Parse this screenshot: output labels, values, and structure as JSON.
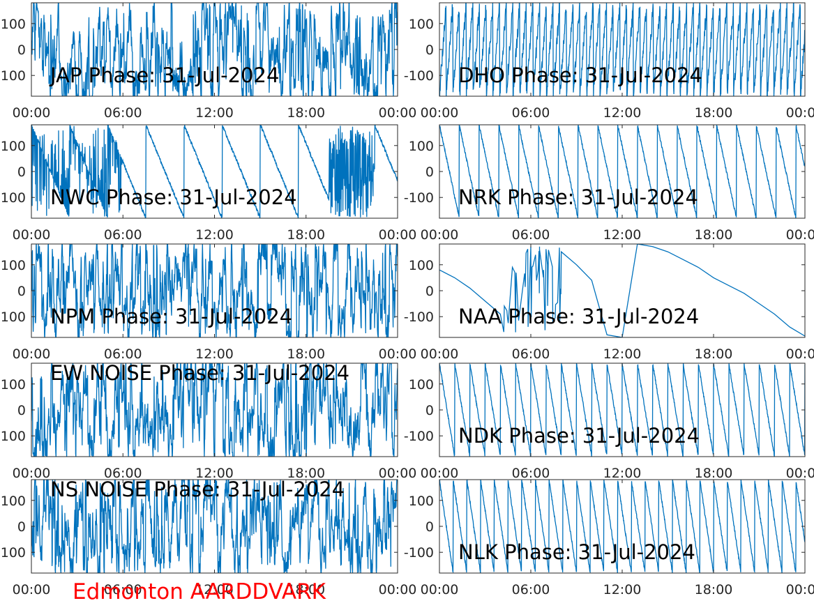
{
  "footer": {
    "text": "Edmonton AARDDVARK",
    "color": "#ff0000"
  },
  "line_color": "#0072bd",
  "chart_data": [
    {
      "type": "line",
      "title": "JAP Phase: 31-Jul-2024",
      "x_ticks": [
        "00:00",
        "06:00",
        "12:00",
        "18:00",
        "00:00"
      ],
      "y_ticks": [
        100,
        0,
        -100
      ],
      "ylim": [
        -180,
        180
      ],
      "xlim_hours": [
        0,
        24
      ],
      "series": [
        {
          "shape": "noise",
          "x": [
            0,
            24
          ],
          "y_range": [
            -180,
            180
          ]
        }
      ]
    },
    {
      "type": "line",
      "title": "DHO Phase: 31-Jul-2024",
      "x_ticks": [
        "00:00",
        "06:00",
        "12:00",
        "18:00",
        "00:00"
      ],
      "y_ticks": [
        100,
        0,
        -100
      ],
      "ylim": [
        -180,
        180
      ],
      "xlim_hours": [
        0,
        24
      ],
      "series": [
        {
          "shape": "fast-wrap",
          "x": [
            0,
            24
          ],
          "y_range": [
            -180,
            180
          ]
        }
      ]
    },
    {
      "type": "line",
      "title": "NWC Phase: 31-Jul-2024",
      "x_ticks": [
        "00:00",
        "06:00",
        "12:00",
        "18:00",
        "00:00"
      ],
      "y_ticks": [
        100,
        0,
        -100
      ],
      "ylim": [
        -180,
        180
      ],
      "xlim_hours": [
        0,
        24
      ],
      "series": [
        {
          "shape": "sawtooth",
          "period_hours": 2.5,
          "noise_until_hours": 6,
          "noise_band_hours": [
            19.5,
            22.5
          ]
        }
      ]
    },
    {
      "type": "line",
      "title": "NRK Phase: 31-Jul-2024",
      "x_ticks": [
        "00:00",
        "06:00",
        "12:00",
        "18:00",
        "00:00"
      ],
      "y_ticks": [
        100,
        0,
        -100
      ],
      "ylim": [
        -180,
        180
      ],
      "xlim_hours": [
        0,
        24
      ],
      "series": [
        {
          "shape": "sawtooth",
          "period_hours": 1.3
        }
      ]
    },
    {
      "type": "line",
      "title": "NPM Phase: 31-Jul-2024",
      "x_ticks": [
        "00:00",
        "06:00",
        "12:00",
        "18:00",
        "00:00"
      ],
      "y_ticks": [
        100,
        0,
        -100
      ],
      "ylim": [
        -180,
        180
      ],
      "xlim_hours": [
        0,
        24
      ],
      "series": [
        {
          "shape": "noise",
          "x": [
            0,
            24
          ],
          "y_range": [
            -180,
            180
          ]
        }
      ]
    },
    {
      "type": "line",
      "title": "NAA Phase: 31-Jul-2024",
      "x_ticks": [
        "00:00",
        "06:00",
        "12:00",
        "18:00",
        "00:00"
      ],
      "y_ticks": [
        100,
        0,
        -100
      ],
      "ylim": [
        -180,
        180
      ],
      "xlim_hours": [
        0,
        24
      ],
      "series": [
        {
          "shape": "slow-drift",
          "x": [
            0,
            1,
            2,
            3,
            4,
            5,
            6,
            7,
            8,
            9,
            10,
            11,
            12,
            13,
            14,
            15,
            16,
            17,
            18,
            19,
            20,
            21,
            22,
            23,
            24
          ],
          "y": [
            80,
            50,
            10,
            -40,
            -90,
            -160,
            170,
            160,
            150,
            100,
            40,
            -170,
            -180,
            180,
            170,
            150,
            120,
            90,
            50,
            20,
            -10,
            -50,
            -90,
            -140,
            -175
          ]
        }
      ]
    },
    {
      "type": "line",
      "title": "EW NOISE Phase: 31-Jul-2024",
      "x_ticks": [
        "00:00",
        "06:00",
        "12:00",
        "18:00",
        "00:00"
      ],
      "y_ticks": [
        100,
        0,
        -100
      ],
      "ylim": [
        -180,
        180
      ],
      "xlim_hours": [
        0,
        24
      ],
      "series": [
        {
          "shape": "noise",
          "x": [
            0,
            24
          ],
          "y_range": [
            -180,
            180
          ]
        }
      ]
    },
    {
      "type": "line",
      "title": "NDK Phase: 31-Jul-2024",
      "x_ticks": [
        "00:00",
        "06:00",
        "12:00",
        "18:00",
        "00:00"
      ],
      "y_ticks": [
        100,
        0,
        -100
      ],
      "ylim": [
        -180,
        180
      ],
      "xlim_hours": [
        0,
        24
      ],
      "series": [
        {
          "shape": "sawtooth",
          "period_hours": 1.0
        }
      ]
    },
    {
      "type": "line",
      "title": "NS NOISE Phase: 31-Jul-2024",
      "x_ticks": [
        "00:00",
        "06:00",
        "12:00",
        "18:00",
        "00:00"
      ],
      "y_ticks": [
        100,
        0,
        -100
      ],
      "ylim": [
        -180,
        180
      ],
      "xlim_hours": [
        0,
        24
      ],
      "series": [
        {
          "shape": "noise",
          "x": [
            0,
            24
          ],
          "y_range": [
            -180,
            180
          ]
        }
      ]
    },
    {
      "type": "line",
      "title": "NLK Phase: 31-Jul-2024",
      "x_ticks": [
        "00:00",
        "06:00",
        "12:00",
        "18:00",
        "00:00"
      ],
      "y_ticks": [
        100,
        0,
        -100
      ],
      "ylim": [
        -180,
        180
      ],
      "xlim_hours": [
        0,
        24
      ],
      "series": [
        {
          "shape": "sawtooth",
          "period_hours": 0.9
        }
      ]
    }
  ]
}
